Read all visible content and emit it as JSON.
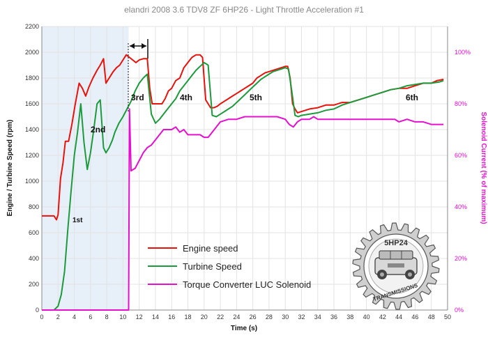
{
  "chart_data": {
    "type": "line",
    "title": "elandri 2008 3.6 TDV8 ZF 6HP26 - Light Throttle Acceleration #1",
    "xlabel": "Time (s)",
    "ylabel": "Engine / Turbine Speed (rpm)",
    "y2label": "Solenoid Current (% of maximum)",
    "xlim": [
      0,
      50
    ],
    "ylim": [
      0,
      2200
    ],
    "y2lim": [
      0,
      110
    ],
    "x_ticks": [
      "0",
      "2",
      "4",
      "6",
      "8",
      "10",
      "12",
      "14",
      "16",
      "18",
      "20",
      "22",
      "24",
      "26",
      "28",
      "30",
      "32",
      "34",
      "36",
      "38",
      "40",
      "42",
      "44",
      "46",
      "48",
      "50"
    ],
    "y_ticks": [
      "0",
      "200",
      "400",
      "600",
      "800",
      "1000",
      "1200",
      "1400",
      "1600",
      "1800",
      "2000",
      "2200"
    ],
    "y2_ticks": [
      "0%",
      "20%",
      "40%",
      "60%",
      "80%",
      "100%"
    ],
    "y2_tick_values": [
      0,
      20,
      40,
      60,
      80,
      100
    ],
    "grid": true,
    "legend_position": "lower-center",
    "series": [
      {
        "name": "Engine speed",
        "color": "#e8120c",
        "axis": "left",
        "x": [
          0,
          1.5,
          1.8,
          2,
          2.3,
          2.6,
          2.9,
          3.3,
          3.7,
          4.1,
          4.6,
          5.0,
          5.4,
          5.8,
          6.3,
          6.8,
          7.2,
          7.6,
          7.9,
          8.2,
          8.5,
          8.8,
          9.2,
          9.6,
          10.0,
          10.4,
          10.8,
          11.2,
          11.6,
          12.0,
          12.5,
          13.0,
          13.3,
          13.6,
          14.0,
          14.4,
          14.8,
          15.2,
          15.6,
          16.0,
          16.5,
          17.0,
          17.5,
          18.0,
          18.5,
          19.0,
          19.5,
          19.8,
          20.2,
          20.5,
          20.8,
          21.2,
          21.6,
          22.0,
          22.5,
          23.0,
          23.5,
          24.0,
          24.5,
          25.0,
          25.5,
          26.0,
          26.5,
          27.0,
          27.5,
          28.0,
          28.5,
          29.0,
          29.5,
          30.0,
          30.3,
          30.6,
          30.9,
          31.2,
          31.5,
          32.0,
          33.0,
          34.0,
          35.0,
          36.0,
          37.0,
          38.0,
          39.0,
          40.0,
          41.0,
          42.0,
          43.0,
          44.0,
          45.0,
          46.0,
          47.0,
          48.0,
          48.7,
          49.5
        ],
        "values": [
          730,
          730,
          700,
          740,
          1020,
          1140,
          1310,
          1310,
          1440,
          1590,
          1760,
          1720,
          1660,
          1730,
          1800,
          1860,
          1900,
          1950,
          1760,
          1790,
          1820,
          1850,
          1880,
          1900,
          1940,
          1980,
          1960,
          1940,
          1920,
          1940,
          1950,
          1950,
          1720,
          1600,
          1600,
          1600,
          1600,
          1640,
          1700,
          1720,
          1780,
          1800,
          1880,
          1920,
          1960,
          1980,
          1980,
          1960,
          1630,
          1600,
          1570,
          1570,
          1580,
          1600,
          1620,
          1640,
          1660,
          1680,
          1700,
          1720,
          1740,
          1760,
          1800,
          1820,
          1840,
          1850,
          1860,
          1870,
          1880,
          1890,
          1890,
          1800,
          1600,
          1560,
          1530,
          1540,
          1560,
          1570,
          1590,
          1590,
          1610,
          1610,
          1630,
          1650,
          1670,
          1690,
          1710,
          1720,
          1720,
          1740,
          1760,
          1760,
          1780,
          1790
        ]
      },
      {
        "name": "Turbine Speed",
        "color": "#1c9a3c",
        "axis": "left",
        "x": [
          0,
          1.5,
          2,
          2.4,
          2.8,
          3.2,
          3.6,
          4.0,
          4.4,
          4.8,
          5.2,
          5.6,
          6.0,
          6.4,
          6.8,
          7.2,
          7.6,
          7.9,
          8.3,
          8.7,
          9.0,
          9.5,
          10.0,
          10.5,
          11.0,
          11.5,
          12.0,
          12.5,
          13.0,
          13.5,
          14.0,
          14.5,
          15.0,
          15.5,
          16.0,
          16.5,
          17.0,
          17.5,
          18.0,
          18.5,
          19.0,
          19.5,
          20.0,
          20.5,
          21.0,
          21.5,
          22.0,
          22.5,
          23.0,
          23.5,
          24.0,
          24.5,
          25.0,
          25.5,
          26.0,
          26.5,
          27.0,
          27.5,
          28.0,
          28.5,
          29.0,
          29.5,
          30.0,
          30.4,
          30.8,
          31.2,
          31.6,
          32.0,
          33.0,
          34.0,
          35.0,
          36.0,
          37.0,
          38.0,
          39.0,
          40.0,
          41.0,
          42.0,
          43.0,
          44.0,
          45.0,
          46.0,
          47.0,
          48.0,
          49.0,
          49.5
        ],
        "values": [
          0,
          0,
          30,
          120,
          300,
          620,
          920,
          1200,
          1380,
          1600,
          1300,
          1090,
          1220,
          1400,
          1600,
          1630,
          1260,
          1220,
          1260,
          1320,
          1380,
          1450,
          1500,
          1560,
          1620,
          1700,
          1760,
          1800,
          1830,
          1520,
          1450,
          1480,
          1520,
          1560,
          1600,
          1640,
          1700,
          1740,
          1780,
          1820,
          1860,
          1890,
          1920,
          1900,
          1510,
          1500,
          1520,
          1540,
          1560,
          1580,
          1610,
          1640,
          1670,
          1700,
          1730,
          1760,
          1790,
          1810,
          1830,
          1850,
          1860,
          1870,
          1880,
          1870,
          1700,
          1510,
          1500,
          1510,
          1520,
          1530,
          1550,
          1560,
          1590,
          1610,
          1630,
          1650,
          1670,
          1690,
          1710,
          1720,
          1740,
          1750,
          1760,
          1760,
          1770,
          1780
        ]
      },
      {
        "name": "Torque Converter LUC Solenoid",
        "color": "#e60fcf",
        "axis": "right",
        "x": [
          0,
          10.7,
          10.8,
          11.0,
          11.5,
          12.0,
          12.5,
          13.0,
          13.5,
          14.0,
          14.5,
          15.0,
          15.5,
          16.0,
          16.5,
          17.0,
          17.5,
          18.0,
          18.5,
          19.0,
          19.5,
          20.0,
          20.5,
          21.0,
          21.5,
          22.0,
          23.0,
          24.0,
          25.0,
          26.0,
          26.5,
          27.0,
          28.0,
          29.0,
          30.0,
          30.5,
          31.0,
          31.5,
          32.0,
          33.0,
          33.5,
          34.0,
          35.0,
          36.0,
          37.0,
          38.0,
          39.0,
          40.0,
          41.0,
          42.0,
          43.0,
          43.5,
          44.0,
          45.0,
          46.0,
          47.0,
          48.0,
          49.0,
          49.5
        ],
        "values": [
          0,
          0,
          78,
          54,
          55,
          58,
          61,
          63,
          64,
          66,
          68,
          70,
          70,
          70,
          71,
          69,
          70,
          68,
          68,
          68,
          68,
          67,
          67,
          69,
          71,
          73,
          74,
          74,
          75,
          75,
          75,
          75,
          75,
          75,
          74,
          72,
          71,
          73,
          74,
          74,
          75,
          74,
          74,
          74,
          74,
          74,
          74,
          74,
          74,
          74,
          74,
          74,
          73,
          74,
          73,
          73,
          72,
          72,
          72
        ]
      }
    ],
    "annotations": [
      "1st",
      "2nd",
      "3rd",
      "4th",
      "5th",
      "6th"
    ]
  },
  "logo": {
    "top_text": "5HP24",
    "bottom_text": "TRANSMISSIONS"
  }
}
